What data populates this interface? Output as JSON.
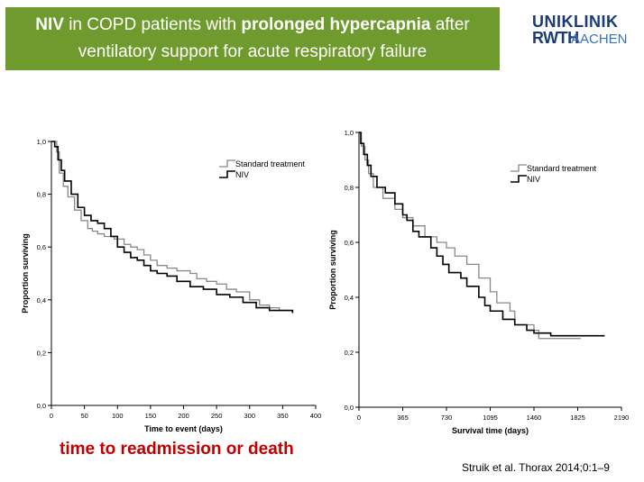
{
  "slide": {
    "title_part1": "NIV",
    "title_part2": " in COPD patients with ",
    "title_part3": "prolonged hypercapnia",
    "title_part4": " after",
    "title_line2": "ventilatory support for acute respiratory failure",
    "logo_line1": "UNIKLINIK",
    "logo_line2a": "RWTH",
    "logo_line2b": "AACHEN",
    "caption": "time to readmission or death",
    "citation": "Struik et al. Thorax 2014;0:1–9",
    "accent_color": "#6f9a2d",
    "caption_color": "#c00000"
  },
  "chart_data": [
    {
      "type": "line",
      "xlabel": "Time to event (days)",
      "ylabel": "Proportion surviving",
      "xlim": [
        0,
        400
      ],
      "ylim": [
        0,
        1
      ],
      "x_ticks": [
        0,
        50,
        100,
        150,
        200,
        250,
        300,
        350,
        400
      ],
      "x_tick_labels": [
        "0",
        "50",
        "100",
        "150",
        "200",
        "250",
        "300",
        "350",
        "400"
      ],
      "y_ticks": [
        0,
        0.2,
        0.4,
        0.6,
        0.8,
        1.0
      ],
      "y_tick_labels": [
        "0,0",
        "0,2",
        "0,4",
        "0,6",
        "0,8",
        "1,0"
      ],
      "legend_position": "top-right",
      "series": [
        {
          "name": "Standard treatment",
          "color": "#888888",
          "points": [
            [
              0,
              1.0
            ],
            [
              8,
              0.96
            ],
            [
              12,
              0.88
            ],
            [
              18,
              0.83
            ],
            [
              25,
              0.79
            ],
            [
              35,
              0.74
            ],
            [
              45,
              0.7
            ],
            [
              55,
              0.67
            ],
            [
              62,
              0.66
            ],
            [
              70,
              0.65
            ],
            [
              80,
              0.64
            ],
            [
              95,
              0.63
            ],
            [
              100,
              0.63
            ],
            [
              110,
              0.61
            ],
            [
              120,
              0.6
            ],
            [
              130,
              0.59
            ],
            [
              140,
              0.57
            ],
            [
              150,
              0.55
            ],
            [
              160,
              0.53
            ],
            [
              175,
              0.52
            ],
            [
              190,
              0.51
            ],
            [
              210,
              0.5
            ],
            [
              220,
              0.48
            ],
            [
              235,
              0.47
            ],
            [
              250,
              0.46
            ],
            [
              265,
              0.44
            ],
            [
              280,
              0.43
            ],
            [
              300,
              0.4
            ],
            [
              315,
              0.38
            ],
            [
              330,
              0.37
            ],
            [
              345,
              0.36
            ],
            [
              360,
              0.36
            ]
          ]
        },
        {
          "name": "NIV",
          "color": "#000000",
          "points": [
            [
              0,
              1.0
            ],
            [
              5,
              0.98
            ],
            [
              10,
              0.93
            ],
            [
              15,
              0.89
            ],
            [
              20,
              0.85
            ],
            [
              30,
              0.8
            ],
            [
              40,
              0.75
            ],
            [
              50,
              0.72
            ],
            [
              60,
              0.7
            ],
            [
              70,
              0.69
            ],
            [
              80,
              0.67
            ],
            [
              90,
              0.64
            ],
            [
              100,
              0.6
            ],
            [
              110,
              0.58
            ],
            [
              120,
              0.56
            ],
            [
              130,
              0.55
            ],
            [
              140,
              0.53
            ],
            [
              150,
              0.51
            ],
            [
              160,
              0.5
            ],
            [
              175,
              0.49
            ],
            [
              190,
              0.47
            ],
            [
              210,
              0.45
            ],
            [
              230,
              0.44
            ],
            [
              250,
              0.42
            ],
            [
              270,
              0.41
            ],
            [
              290,
              0.39
            ],
            [
              310,
              0.37
            ],
            [
              330,
              0.36
            ],
            [
              350,
              0.36
            ],
            [
              365,
              0.35
            ]
          ]
        }
      ]
    },
    {
      "type": "line",
      "xlabel": "Survival time (days)",
      "ylabel": "Proportion surviving",
      "xlim": [
        0,
        2190
      ],
      "ylim": [
        0,
        1
      ],
      "x_ticks": [
        0,
        365,
        730,
        1095,
        1460,
        1825,
        2190
      ],
      "x_tick_labels": [
        "0",
        "365",
        "730",
        "1095",
        "1460",
        "1825",
        "2190"
      ],
      "y_ticks": [
        0,
        0.2,
        0.4,
        0.6,
        0.8,
        1.0
      ],
      "y_tick_labels": [
        "0,0",
        "0,2",
        "0,4",
        "0,6",
        "0,8",
        "1,0"
      ],
      "legend_position": "top-right",
      "series": [
        {
          "name": "Standard treatment",
          "color": "#888888",
          "points": [
            [
              0,
              1.0
            ],
            [
              20,
              0.95
            ],
            [
              50,
              0.9
            ],
            [
              80,
              0.85
            ],
            [
              120,
              0.8
            ],
            [
              200,
              0.76
            ],
            [
              300,
              0.72
            ],
            [
              365,
              0.69
            ],
            [
              450,
              0.66
            ],
            [
              550,
              0.62
            ],
            [
              650,
              0.6
            ],
            [
              730,
              0.58
            ],
            [
              800,
              0.55
            ],
            [
              900,
              0.52
            ],
            [
              1000,
              0.47
            ],
            [
              1095,
              0.42
            ],
            [
              1150,
              0.38
            ],
            [
              1260,
              0.35
            ],
            [
              1300,
              0.3
            ],
            [
              1460,
              0.28
            ],
            [
              1500,
              0.25
            ],
            [
              1825,
              0.25
            ],
            [
              1850,
              0.25
            ]
          ]
        },
        {
          "name": "NIV",
          "color": "#000000",
          "points": [
            [
              0,
              1.0
            ],
            [
              15,
              0.96
            ],
            [
              40,
              0.92
            ],
            [
              70,
              0.88
            ],
            [
              100,
              0.84
            ],
            [
              150,
              0.8
            ],
            [
              220,
              0.78
            ],
            [
              300,
              0.74
            ],
            [
              365,
              0.7
            ],
            [
              400,
              0.68
            ],
            [
              450,
              0.64
            ],
            [
              500,
              0.62
            ],
            [
              600,
              0.58
            ],
            [
              650,
              0.55
            ],
            [
              700,
              0.52
            ],
            [
              750,
              0.49
            ],
            [
              850,
              0.47
            ],
            [
              900,
              0.44
            ],
            [
              1000,
              0.4
            ],
            [
              1050,
              0.37
            ],
            [
              1095,
              0.35
            ],
            [
              1200,
              0.32
            ],
            [
              1300,
              0.3
            ],
            [
              1400,
              0.28
            ],
            [
              1460,
              0.27
            ],
            [
              1600,
              0.26
            ],
            [
              2050,
              0.26
            ]
          ]
        }
      ]
    }
  ]
}
